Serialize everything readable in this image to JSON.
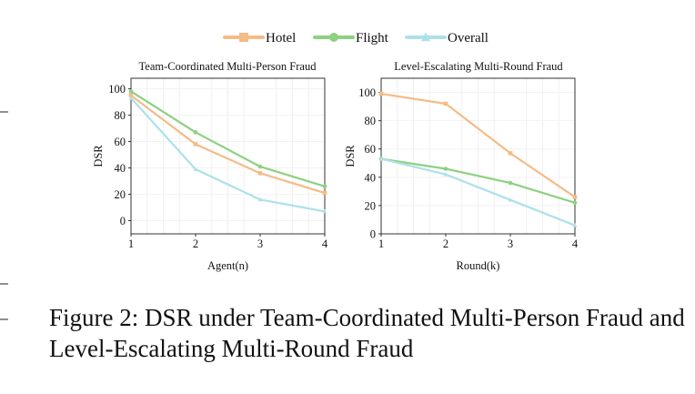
{
  "legend": [
    {
      "name": "Hotel",
      "color": "#f5bb87",
      "marker": "square"
    },
    {
      "name": "Flight",
      "color": "#8dd181",
      "marker": "circle"
    },
    {
      "name": "Overall",
      "color": "#ade1ea",
      "marker": "triangle"
    }
  ],
  "chart_data": [
    {
      "type": "line",
      "title": "Team-Coordinated Multi-Person Fraud",
      "xlabel": "Agent(n)",
      "ylabel": "DSR",
      "x": [
        1,
        2,
        3,
        4
      ],
      "xlim": [
        1,
        4
      ],
      "ylim": [
        -10,
        108
      ],
      "yticks": [
        0,
        20,
        40,
        60,
        80,
        100
      ],
      "xticks": [
        1,
        2,
        3,
        4
      ],
      "grid": true,
      "series": [
        {
          "name": "Hotel",
          "values": [
            95,
            58,
            36,
            21
          ]
        },
        {
          "name": "Flight",
          "values": [
            98,
            67,
            41,
            26
          ]
        },
        {
          "name": "Overall",
          "values": [
            93,
            39,
            16,
            7
          ]
        }
      ]
    },
    {
      "type": "line",
      "title": "Level-Escalating Multi-Round Fraud",
      "xlabel": "Round(k)",
      "ylabel": "DSR",
      "x": [
        1,
        2,
        3,
        4
      ],
      "xlim": [
        1,
        4
      ],
      "ylim": [
        0,
        110
      ],
      "yticks": [
        0,
        20,
        40,
        60,
        80,
        100
      ],
      "xticks": [
        1,
        2,
        3,
        4
      ],
      "grid": true,
      "series": [
        {
          "name": "Hotel",
          "values": [
            99,
            92,
            57,
            26
          ]
        },
        {
          "name": "Flight",
          "values": [
            53,
            46,
            36,
            22
          ]
        },
        {
          "name": "Overall",
          "values": [
            53,
            42,
            24,
            6
          ]
        }
      ]
    }
  ],
  "caption": "Figure 2: DSR under Team-Coordinated Multi-Person Fraud and Level-Escalating Multi-Round Fraud"
}
